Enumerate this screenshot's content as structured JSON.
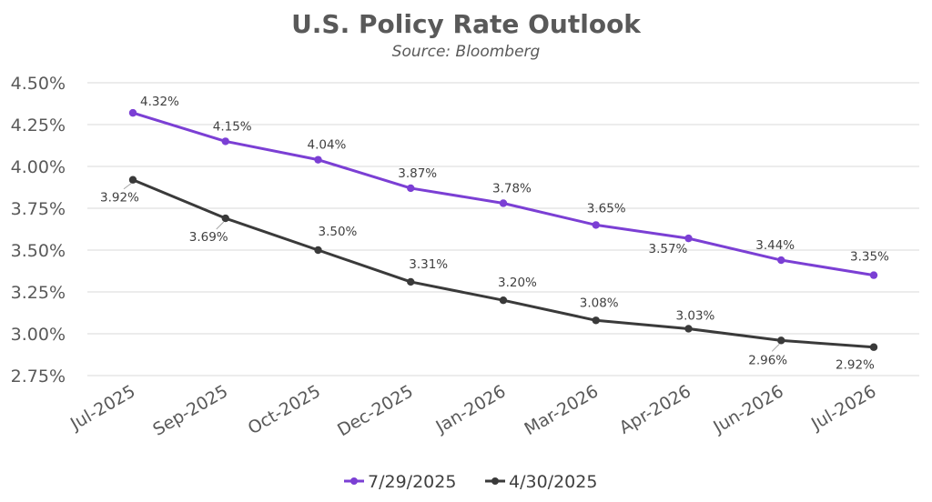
{
  "chart_data": {
    "type": "line",
    "title": "U.S. Policy Rate Outlook",
    "subtitle": "Source: Bloomberg",
    "categories": [
      "Jul-2025",
      "Sep-2025",
      "Oct-2025",
      "Dec-2025",
      "Jan-2026",
      "Mar-2026",
      "Apr-2026",
      "Jun-2026",
      "Jul-2026"
    ],
    "y_ticks": [
      "4.50%",
      "4.25%",
      "4.00%",
      "3.75%",
      "3.50%",
      "3.25%",
      "3.00%",
      "2.75%"
    ],
    "ylim": [
      2.75,
      4.5
    ],
    "grid": true,
    "legend_position": "bottom",
    "series": [
      {
        "name": "7/29/2025",
        "color": "#7b3fd4",
        "values": [
          4.32,
          4.15,
          4.04,
          3.87,
          3.78,
          3.65,
          3.57,
          3.44,
          3.35
        ],
        "labels": [
          "4.32%",
          "4.15%",
          "4.04%",
          "3.87%",
          "3.78%",
          "3.65%",
          "3.57%",
          "3.44%",
          "3.35%"
        ]
      },
      {
        "name": "4/30/2025",
        "color": "#3a3a3a",
        "values": [
          3.92,
          3.69,
          3.5,
          3.31,
          3.2,
          3.08,
          3.03,
          2.96,
          2.92
        ],
        "labels": [
          "3.92%",
          "3.69%",
          "3.50%",
          "3.31%",
          "3.20%",
          "3.08%",
          "3.03%",
          "2.96%",
          "2.92%"
        ]
      }
    ]
  }
}
